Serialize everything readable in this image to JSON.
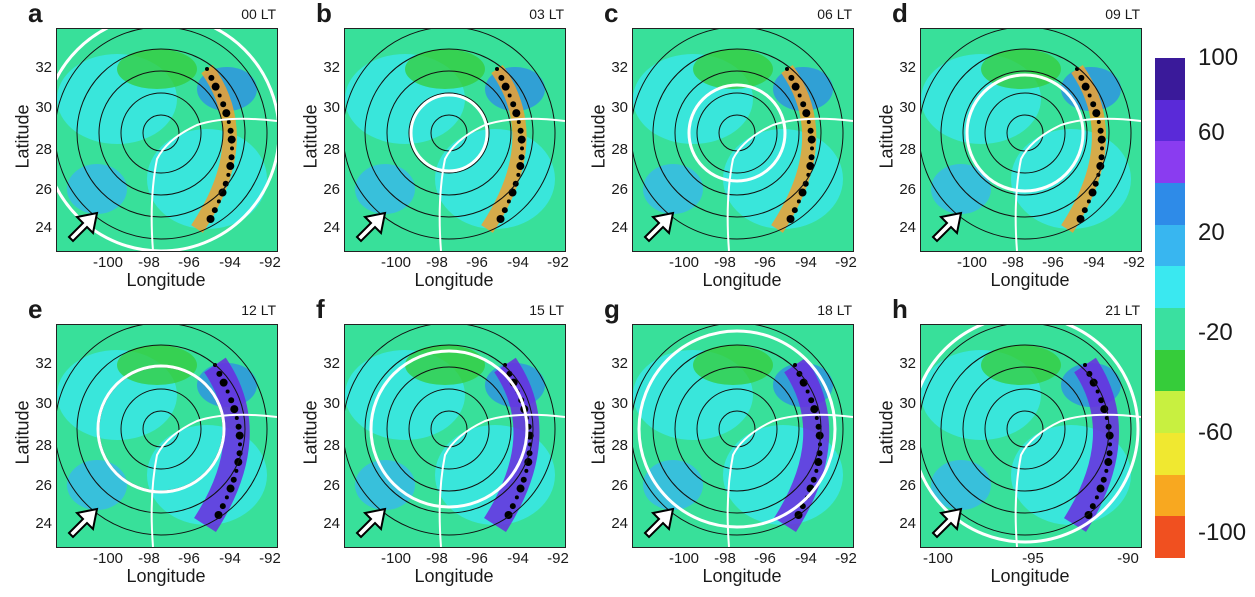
{
  "panels": [
    {
      "letter": "a",
      "time": "00 LT",
      "ticks_x": [
        "-100",
        "-98",
        "-96",
        "-94",
        "-92"
      ],
      "ticks_y": [
        "32",
        "30",
        "28",
        "26",
        "24"
      ],
      "white_ring_frac": 1.0
    },
    {
      "letter": "b",
      "time": "03 LT",
      "ticks_x": [
        "-100",
        "-98",
        "-96",
        "-94",
        "-92"
      ],
      "ticks_y": [
        "32",
        "30",
        "28",
        "26",
        "24"
      ],
      "white_ring_frac": 0.2
    },
    {
      "letter": "c",
      "time": "06 LT",
      "ticks_x": [
        "-100",
        "-98",
        "-96",
        "-94",
        "-92"
      ],
      "ticks_y": [
        "32",
        "30",
        "28",
        "26",
        "24"
      ],
      "white_ring_frac": 0.3
    },
    {
      "letter": "d",
      "time": "09 LT",
      "ticks_x": [
        "-100",
        "-98",
        "-96",
        "-94",
        "-92"
      ],
      "ticks_y": [
        "32",
        "30",
        "28",
        "26",
        "24"
      ],
      "white_ring_frac": 0.4
    },
    {
      "letter": "e",
      "time": "12 LT",
      "ticks_x": [
        "-100",
        "-98",
        "-96",
        "-94",
        "-92"
      ],
      "ticks_y": [
        "32",
        "30",
        "28",
        "26",
        "24"
      ],
      "white_ring_frac": 0.45
    },
    {
      "letter": "f",
      "time": "15 LT",
      "ticks_x": [
        "-100",
        "-98",
        "-96",
        "-94",
        "-92"
      ],
      "ticks_y": [
        "32",
        "30",
        "28",
        "26",
        "24"
      ],
      "white_ring_frac": 0.6
    },
    {
      "letter": "g",
      "time": "18 LT",
      "ticks_x": [
        "-100",
        "-98",
        "-96",
        "-94",
        "-92"
      ],
      "ticks_y": [
        "32",
        "30",
        "28",
        "26",
        "24"
      ],
      "white_ring_frac": 0.8
    },
    {
      "letter": "h",
      "time": "21 LT",
      "ticks_x": [
        "-100",
        "-95",
        "-90"
      ],
      "ticks_y": [
        "32",
        "30",
        "28",
        "26",
        "24"
      ],
      "white_ring_frac": 0.95
    }
  ],
  "axis": {
    "xlabel": "Longitude",
    "ylabel": "Latitude"
  },
  "colorbar": {
    "tick_labels": [
      "100",
      "60",
      "20",
      "-20",
      "-60",
      "-100"
    ],
    "colors": [
      "#3a1a9a",
      "#5a2ad8",
      "#8a3cf0",
      "#2e8be8",
      "#38b6f0",
      "#3ae8f0",
      "#3ae0a0",
      "#36cc3a",
      "#c8f040",
      "#f0e830",
      "#f8a820",
      "#f05020"
    ]
  },
  "chart_data": {
    "type": "heatmap",
    "title": "",
    "xlabel": "Longitude",
    "ylabel": "Latitude",
    "xlim": [
      -102,
      -90
    ],
    "ylim": [
      23,
      34
    ],
    "panels": [
      "00 LT",
      "03 LT",
      "06 LT",
      "09 LT",
      "12 LT",
      "15 LT",
      "18 LT",
      "21 LT"
    ],
    "colorbar_range": [
      -100,
      100
    ],
    "colorbar_ticks": [
      100,
      60,
      20,
      -20,
      -60,
      -100
    ]
  }
}
